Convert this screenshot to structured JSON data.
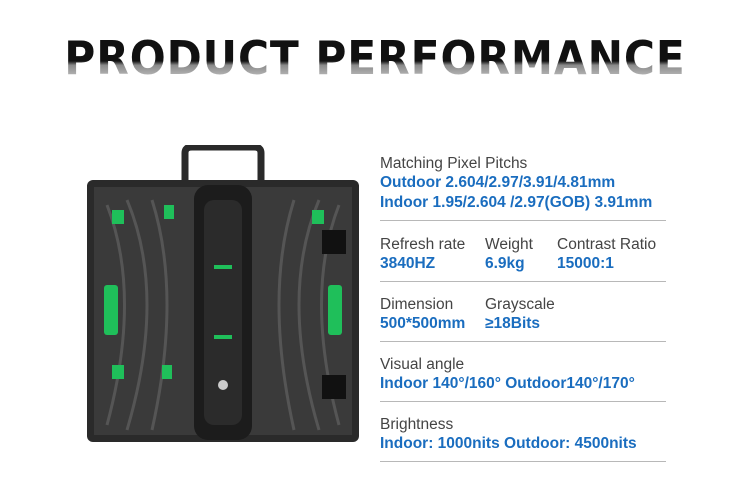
{
  "title": "PRODUCT PERFORMANCE",
  "colors": {
    "accent": "#1a6dbf",
    "label": "#444444",
    "divider": "#b8b8b8",
    "panel_green": "#1fbf5a"
  },
  "specs": {
    "pitch": {
      "label": "Matching Pixel Pitchs",
      "outdoor": "Outdoor  2.604/2.97/3.91/4.81mm",
      "indoor": "Indoor 1.95/2.604 /2.97(GOB)  3.91mm"
    },
    "refresh": {
      "label": "Refresh rate",
      "value": "3840HZ"
    },
    "weight": {
      "label": "Weight",
      "value": "6.9kg"
    },
    "contrast": {
      "label": "Contrast Ratio",
      "value": "15000:1"
    },
    "dimension": {
      "label": "Dimension",
      "value": "500*500mm"
    },
    "grayscale": {
      "label": "Grayscale",
      "value": "≥18Bits"
    },
    "visual": {
      "label": "Visual angle",
      "value": "Indoor 140°/160°   Outdoor140°/170°"
    },
    "brightness": {
      "label": "Brightness",
      "value": "Indoor: 1000nits Outdoor: 4500nits"
    }
  }
}
